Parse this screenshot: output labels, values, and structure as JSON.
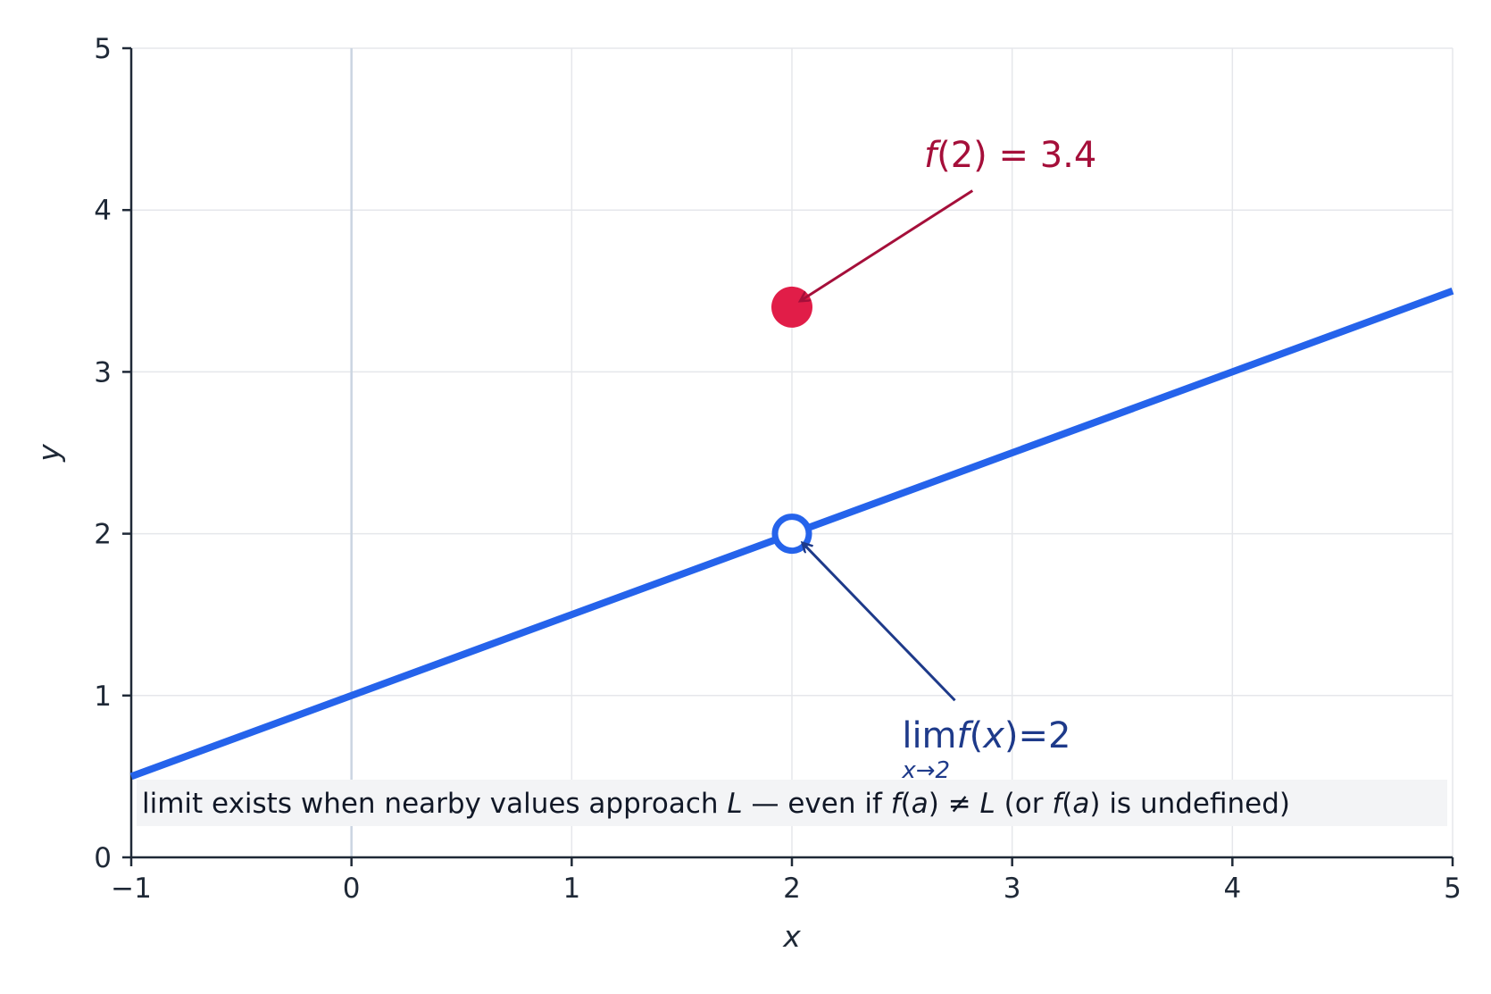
{
  "chart_data": {
    "type": "line",
    "xlabel": "x",
    "ylabel": "y",
    "xlim": [
      -1,
      5
    ],
    "ylim": [
      0,
      5
    ],
    "xticks": [
      -1,
      0,
      1,
      2,
      3,
      4,
      5
    ],
    "xtick_labels": [
      "−1",
      "0",
      "1",
      "2",
      "3",
      "4",
      "5"
    ],
    "yticks": [
      0,
      1,
      2,
      3,
      4,
      5
    ],
    "ytick_labels": [
      "0",
      "1",
      "2",
      "3",
      "4",
      "5"
    ],
    "grid": true,
    "series": [
      {
        "x": [
          -1,
          5
        ],
        "y": [
          0.5,
          3.5
        ],
        "color": "#2563eb"
      }
    ],
    "open_point": {
      "x": 2,
      "y": 2,
      "color": "#2563eb"
    },
    "filled_point": {
      "x": 2,
      "y": 3.4,
      "color": "#e11d48"
    },
    "annotations": {
      "filled": {
        "text_f": "f",
        "text_rest": "(2) = 3.4",
        "text_x": 2.6,
        "text_y": 4.3,
        "arrow_from": [
          2.82,
          4.12
        ],
        "arrow_to": [
          2.04,
          3.44
        ],
        "color": "#a50f3a"
      },
      "limit": {
        "text_lim": "lim",
        "text_f": "f",
        "text_x_var": "x",
        "text_paren_open": "(",
        "text_rest": ")=2",
        "subscript": "x→2",
        "text_x": 2.5,
        "text_y": 0.7,
        "arrow_from": [
          2.74,
          0.97
        ],
        "arrow_to": [
          2.05,
          1.94
        ],
        "color": "#1e3a8a"
      }
    },
    "note": {
      "parts": [
        {
          "t": "limit exists when nearby values approach ",
          "i": false
        },
        {
          "t": "L",
          "i": true
        },
        {
          "t": " — even if ",
          "i": false
        },
        {
          "t": "f",
          "i": true
        },
        {
          "t": "(",
          "i": false
        },
        {
          "t": "a",
          "i": true
        },
        {
          "t": ") ≠ ",
          "i": false
        },
        {
          "t": "L",
          "i": true
        },
        {
          "t": " (or ",
          "i": false
        },
        {
          "t": "f",
          "i": true
        },
        {
          "t": "(",
          "i": false
        },
        {
          "t": "a",
          "i": true
        },
        {
          "t": ") is undefined)",
          "i": false
        }
      ]
    },
    "colors": {
      "axis": "#1f2937",
      "grid": "#e5e7eb",
      "zero_line": "#cbd5e1",
      "note_bg": "#f3f4f6"
    }
  }
}
